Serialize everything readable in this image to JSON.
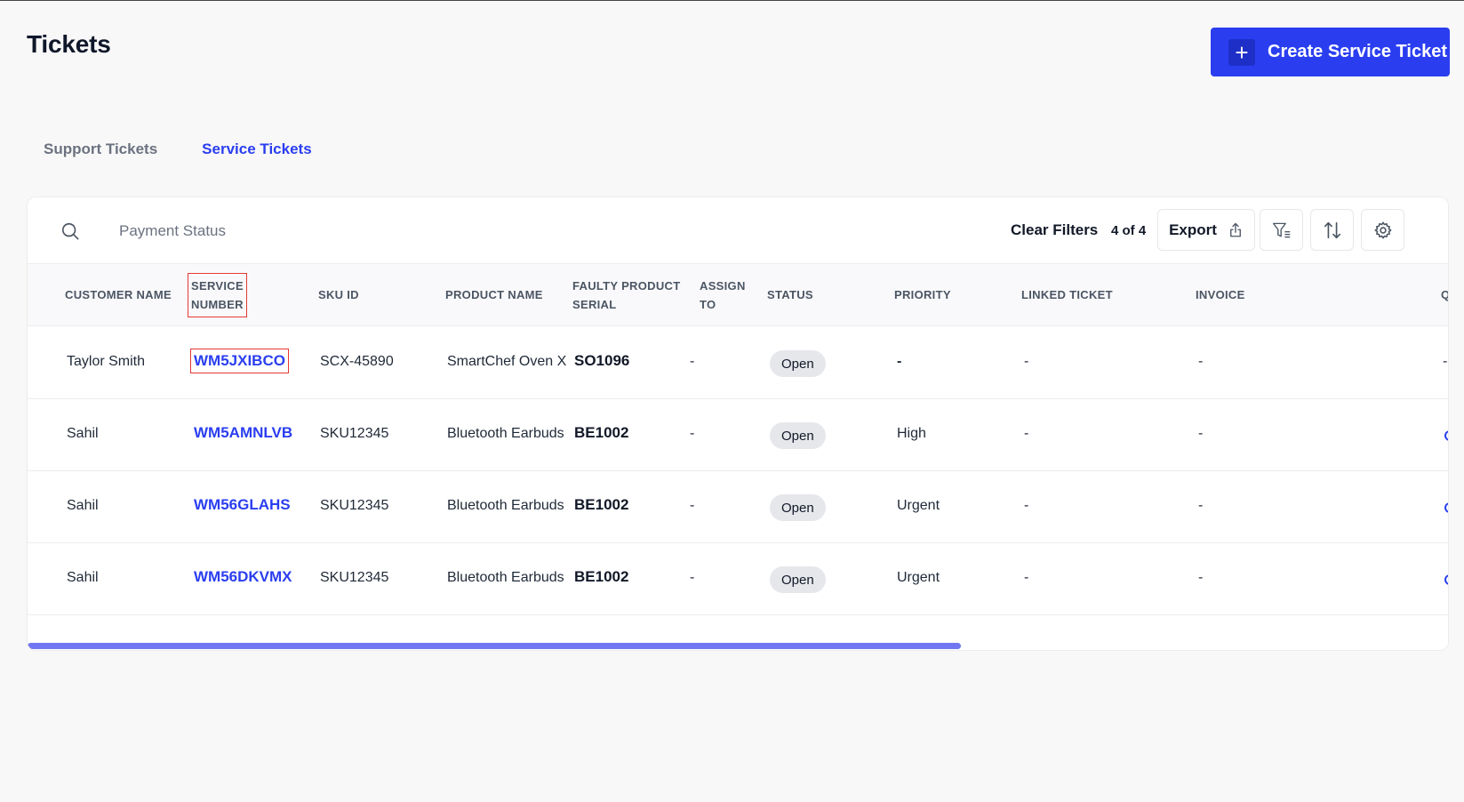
{
  "page": {
    "title": "Tickets"
  },
  "header": {
    "create_button_label": "Create Service Ticket",
    "create_icon": "plus-icon"
  },
  "tabs": [
    {
      "label": "Support Tickets",
      "active": false
    },
    {
      "label": "Service Tickets",
      "active": true
    }
  ],
  "toolbar": {
    "search_placeholder": "Payment Status",
    "clear_filters_label": "Clear Filters",
    "count_label": "4 of 4",
    "export_label": "Export",
    "icons": [
      "search-icon",
      "upload-icon",
      "filter-icon",
      "sort-icon",
      "gear-icon"
    ]
  },
  "table": {
    "columns": [
      {
        "line1": "CUSTOMER NAME",
        "line2": ""
      },
      {
        "line1": "SERVICE",
        "line2": "NUMBER"
      },
      {
        "line1": "SKU ID",
        "line2": ""
      },
      {
        "line1": "PRODUCT NAME",
        "line2": ""
      },
      {
        "line1": "FAULTY PRODUCT",
        "line2": "SERIAL"
      },
      {
        "line1": "ASSIGN",
        "line2": "TO"
      },
      {
        "line1": "STATUS",
        "line2": ""
      },
      {
        "line1": "PRIORITY",
        "line2": ""
      },
      {
        "line1": "LINKED TICKET",
        "line2": ""
      },
      {
        "line1": "INVOICE",
        "line2": ""
      },
      {
        "line1": "Q",
        "line2": ""
      }
    ],
    "rows": [
      {
        "customer": "Taylor Smith",
        "service_number": "WM5JXIBCO",
        "sku": "SCX-45890",
        "product": "SmartChef Oven X",
        "serial": "SO1096",
        "assign": "-",
        "status": "Open",
        "priority": "-",
        "linked": "-",
        "invoice": "-",
        "last": "-"
      },
      {
        "customer": "Sahil",
        "service_number": "WM5AMNLVB",
        "sku": "SKU12345",
        "product": "Bluetooth Earbuds",
        "serial": "BE1002",
        "assign": "-",
        "status": "Open",
        "priority": "High",
        "linked": "-",
        "invoice": "-",
        "last": ""
      },
      {
        "customer": "Sahil",
        "service_number": "WM56GLAHS",
        "sku": "SKU12345",
        "product": "Bluetooth Earbuds",
        "serial": "BE1002",
        "assign": "-",
        "status": "Open",
        "priority": "Urgent",
        "linked": "-",
        "invoice": "-",
        "last": ""
      },
      {
        "customer": "Sahil",
        "service_number": "WM56DKVMX",
        "sku": "SKU12345",
        "product": "Bluetooth Earbuds",
        "serial": "BE1002",
        "assign": "-",
        "status": "Open",
        "priority": "Urgent",
        "linked": "-",
        "invoice": "-",
        "last": ""
      }
    ]
  },
  "colors": {
    "accent": "#2a3ef0",
    "scrollbar": "#7077f0",
    "highlight": "#e53935"
  }
}
